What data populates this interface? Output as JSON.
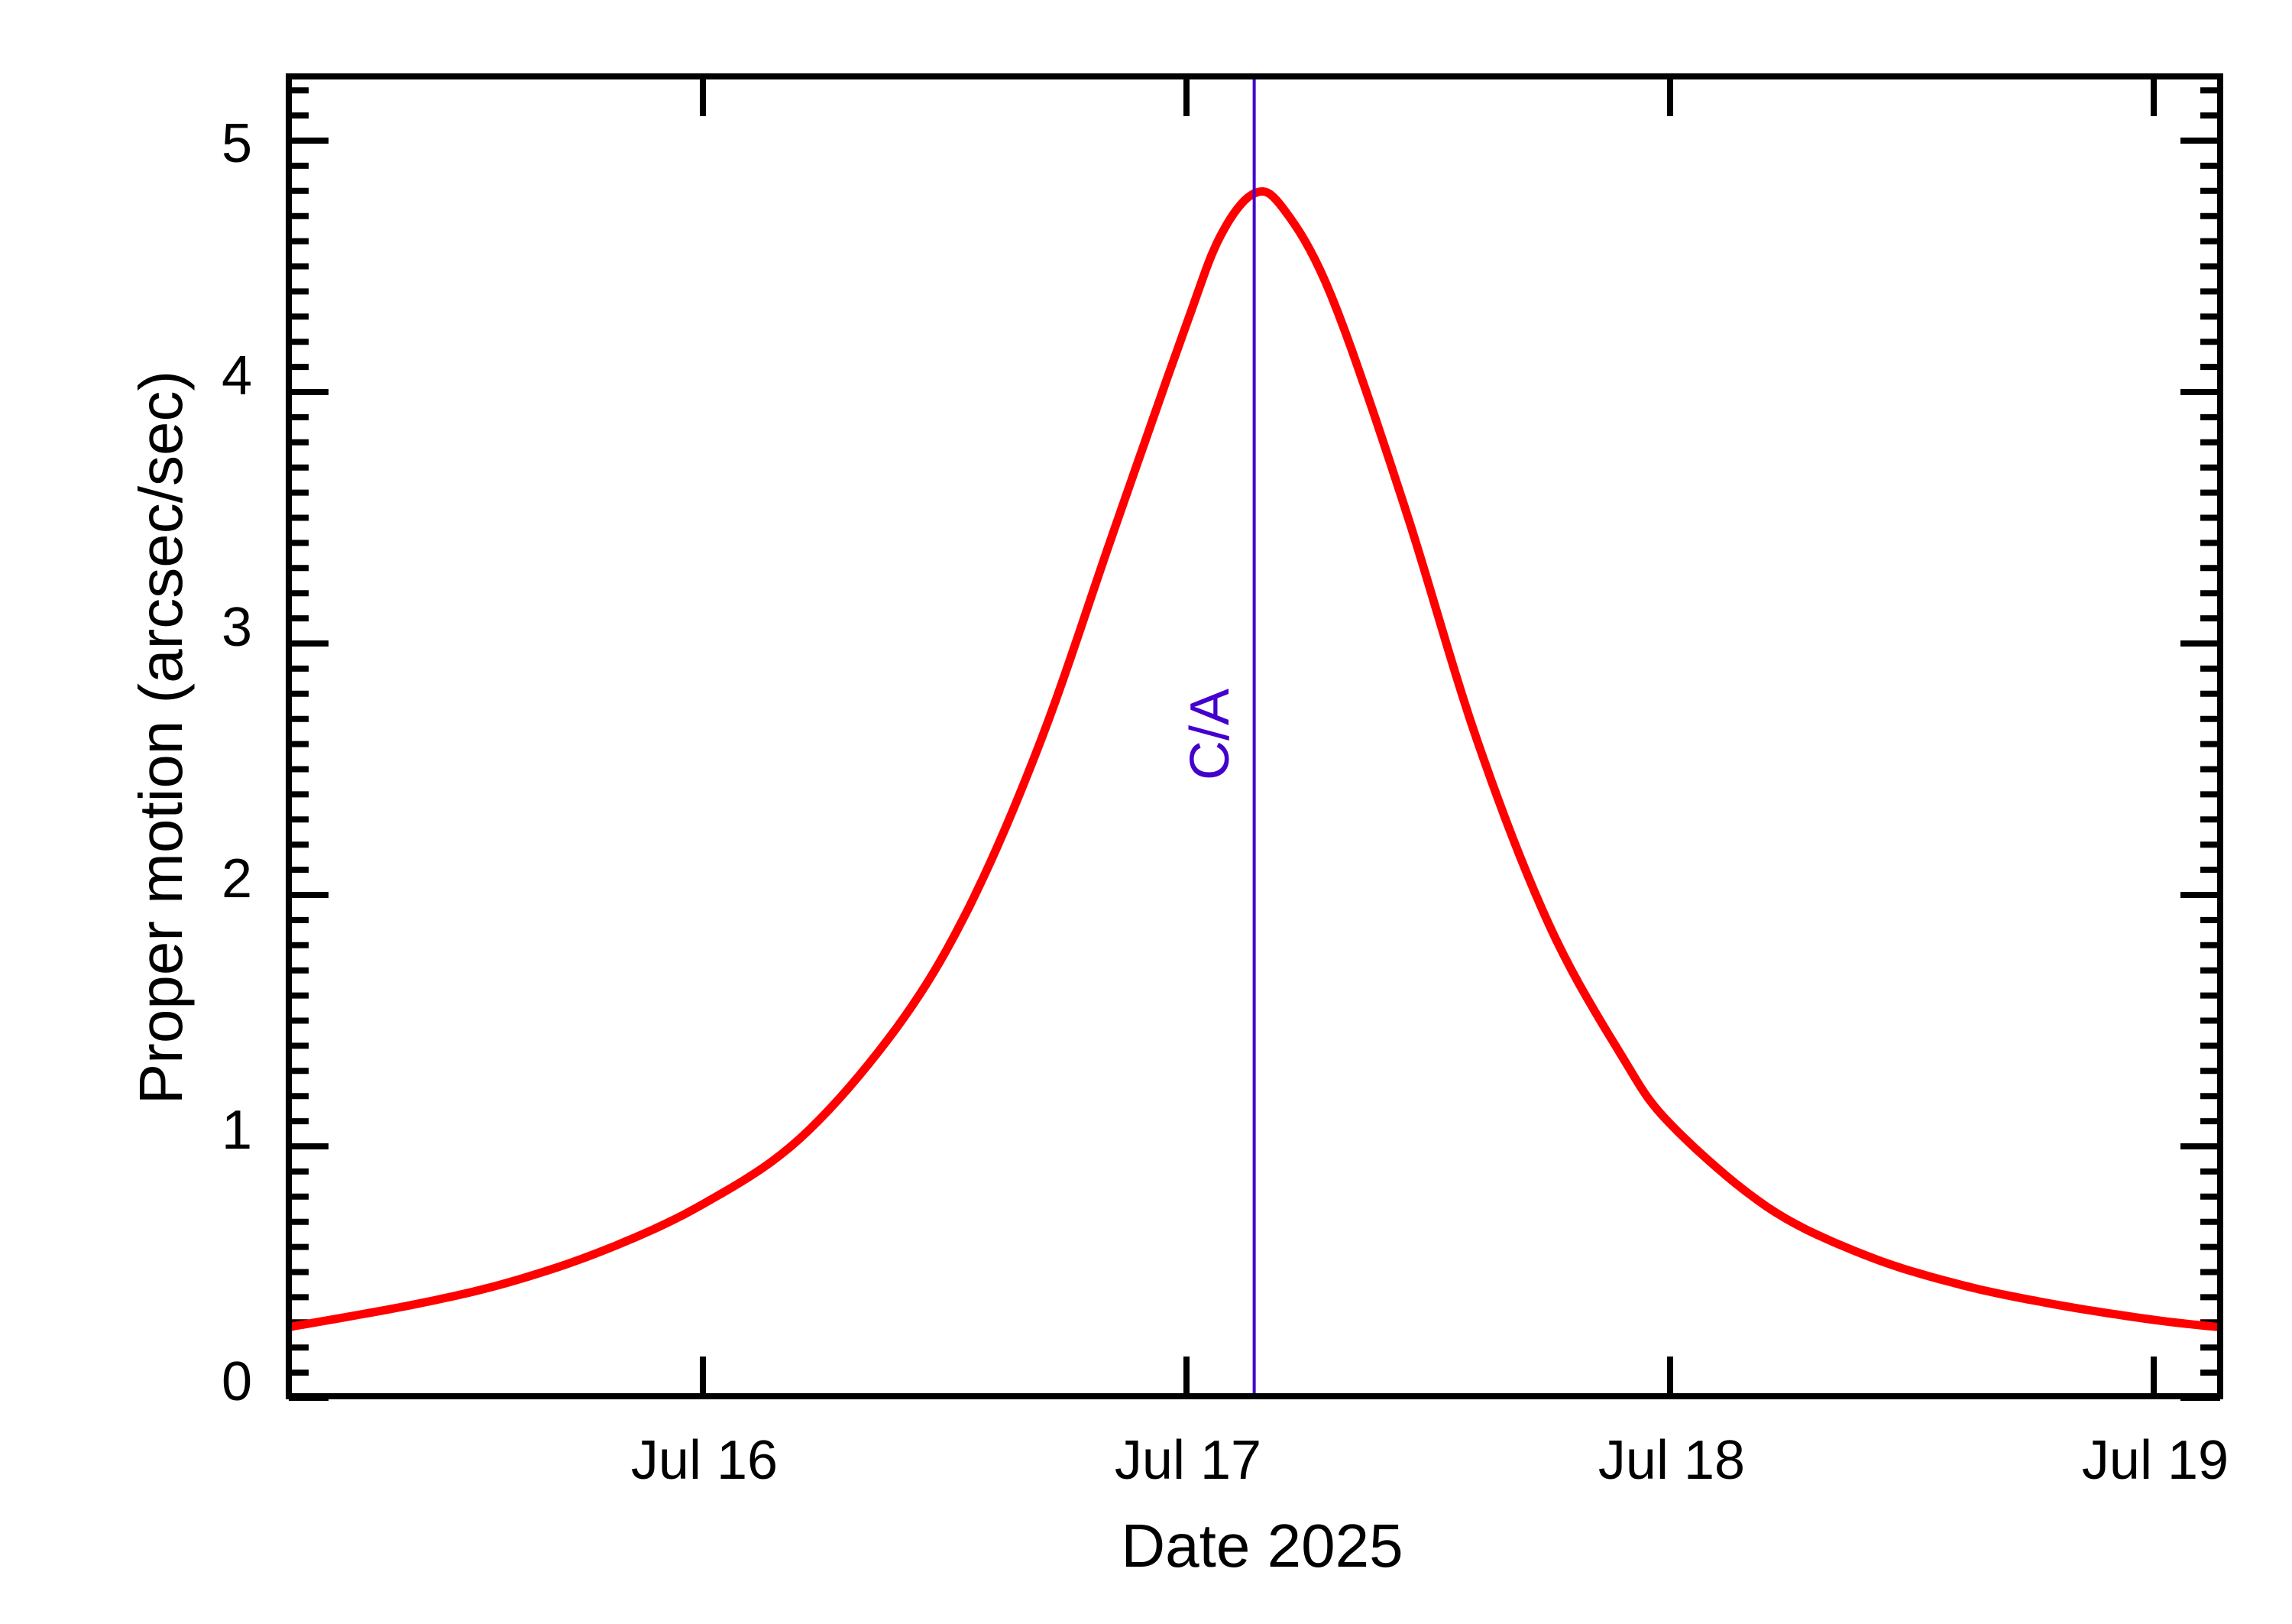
{
  "chart_data": {
    "type": "line",
    "title": "",
    "xlabel": "Date 2025",
    "ylabel": "Proper motion (arcsec/sec)",
    "x_unit": "day of July 2025",
    "xlim": [
      15.14,
      19.14
    ],
    "ylim": [
      0,
      5.26
    ],
    "x_ticks": [
      {
        "value": 16,
        "label": "Jul 16"
      },
      {
        "value": 17,
        "label": "Jul 17"
      },
      {
        "value": 18,
        "label": "Jul 18"
      },
      {
        "value": 19,
        "label": "Jul 19"
      }
    ],
    "y_ticks": [
      {
        "value": 0,
        "label": "0"
      },
      {
        "value": 1,
        "label": "1"
      },
      {
        "value": 2,
        "label": "2"
      },
      {
        "value": 3,
        "label": "3"
      },
      {
        "value": 4,
        "label": "4"
      },
      {
        "value": 5,
        "label": "5"
      }
    ],
    "y_minor_step": 0.1,
    "grid": false,
    "legend": null,
    "series": [
      {
        "name": "Proper motion",
        "color": "#FF0000",
        "x": [
          15.14,
          15.4,
          15.6,
          15.8,
          16.0,
          16.2,
          16.4,
          16.55,
          16.7,
          16.85,
          17.0,
          17.07,
          17.14,
          17.2,
          17.3,
          17.45,
          17.6,
          17.75,
          17.9,
          18.0,
          18.2,
          18.4,
          18.6,
          18.8,
          19.0,
          19.14
        ],
        "y": [
          0.28,
          0.37,
          0.46,
          0.59,
          0.77,
          1.03,
          1.47,
          1.95,
          2.62,
          3.45,
          4.27,
          4.62,
          4.79,
          4.73,
          4.38,
          3.55,
          2.62,
          1.88,
          1.36,
          1.09,
          0.76,
          0.57,
          0.45,
          0.37,
          0.31,
          0.28
        ]
      }
    ],
    "annotations": [
      {
        "type": "vline",
        "x": 17.14,
        "label": "C/A",
        "color": "#4400CC"
      }
    ]
  },
  "labels": {
    "xlabel": "Date 2025",
    "ylabel": "Proper motion (arcsec/sec)",
    "ca": "C/A",
    "x_ticks": [
      "Jul 16",
      "Jul 17",
      "Jul 18",
      "Jul 19"
    ],
    "y_ticks": [
      "0",
      "1",
      "2",
      "3",
      "4",
      "5"
    ]
  }
}
